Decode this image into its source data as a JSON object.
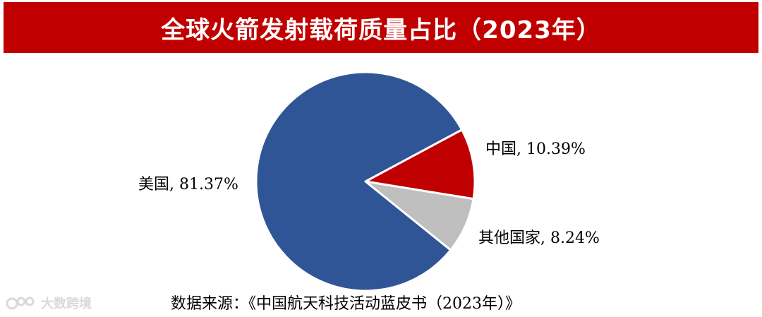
{
  "title": "全球火箭发射载荷质量占比（2023年）",
  "source": "数据来源：《中国航天科技活动蓝皮书（2023年）》",
  "watermark": {
    "text": "大数跨境",
    "icon": "logo-icon"
  },
  "colors": {
    "title_bg": "#c00000",
    "title_text": "#ffffff",
    "slice_border": "#ffffff"
  },
  "chart_data": {
    "type": "pie",
    "title": "全球火箭发射载荷质量占比（2023年）",
    "slices": [
      {
        "label": "美国",
        "value": 81.37,
        "value_label": "81.37%",
        "color": "#2f5597"
      },
      {
        "label": "中国",
        "value": 10.39,
        "value_label": "10.39%",
        "color": "#c00000"
      },
      {
        "label": "其他国家",
        "value": 8.24,
        "value_label": "8.24%",
        "color": "#bfbfbf"
      }
    ],
    "label_format": "{label}, {value_label}"
  }
}
